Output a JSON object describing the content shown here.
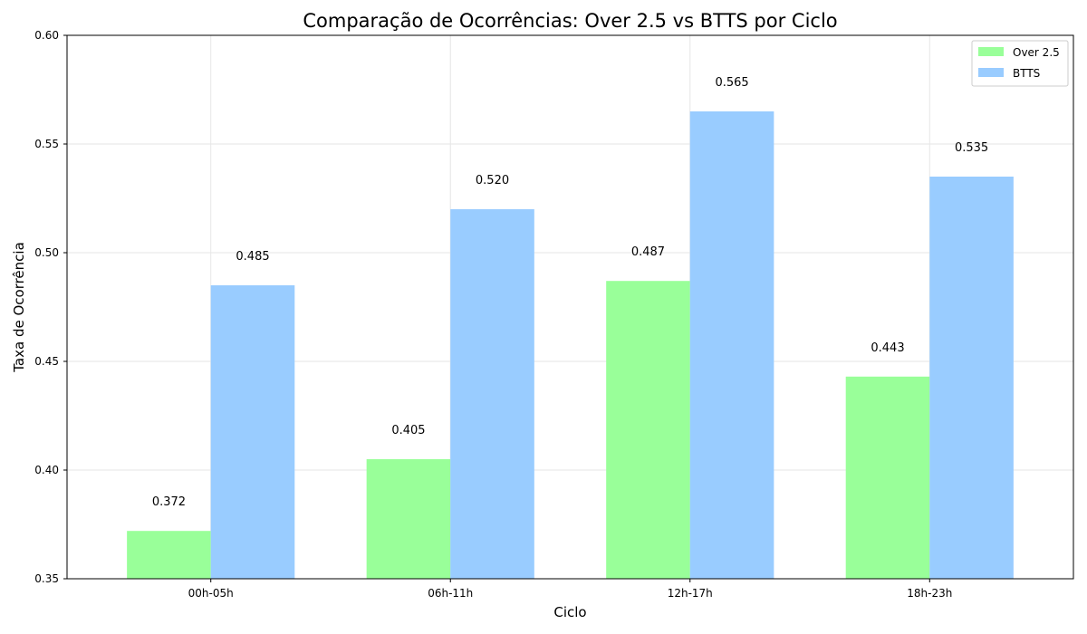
{
  "chart_data": {
    "type": "bar",
    "title": "Comparação de Ocorrências: Over 2.5 vs BTTS por Ciclo",
    "xlabel": "Ciclo",
    "ylabel": "Taxa de Ocorrência",
    "categories": [
      "00h-05h",
      "06h-11h",
      "12h-17h",
      "18h-23h"
    ],
    "series": [
      {
        "name": "Over 2.5",
        "values": [
          0.372,
          0.405,
          0.487,
          0.443
        ],
        "labels": [
          "0.372",
          "0.405",
          "0.487",
          "0.443"
        ],
        "color": "#99ff99"
      },
      {
        "name": "BTTS",
        "values": [
          0.485,
          0.52,
          0.565,
          0.535
        ],
        "labels": [
          "0.485",
          "0.520",
          "0.565",
          "0.535"
        ],
        "color": "#99ccff"
      }
    ],
    "ylim": [
      0.35,
      0.6
    ],
    "yticks": [
      "0.35",
      "0.40",
      "0.45",
      "0.50",
      "0.55",
      "0.60"
    ],
    "grid": true,
    "legend_position": "top-right"
  }
}
